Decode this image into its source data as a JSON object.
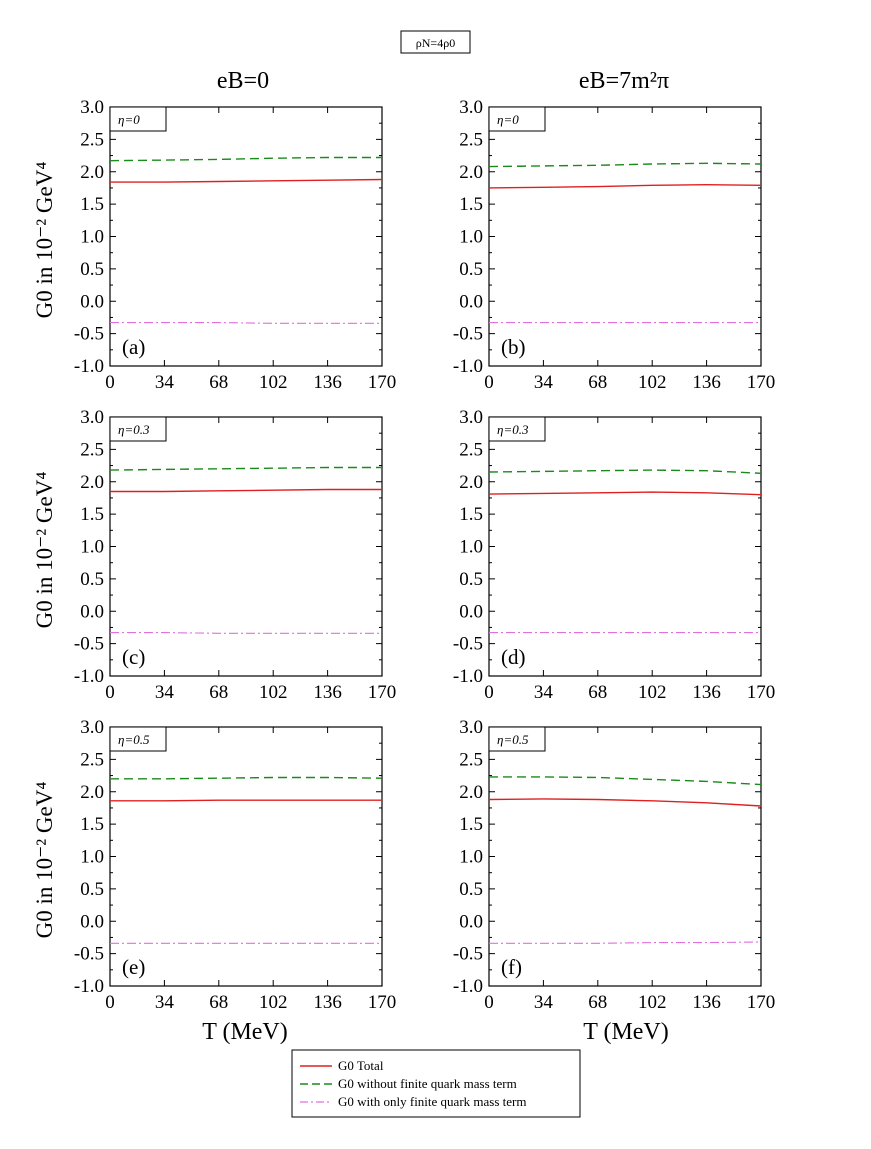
{
  "figure": {
    "density_box": "ρN=4ρ0",
    "columns": [
      "eB=0",
      "eB=7m²π"
    ],
    "ylabel": "G0  in 10⁻² GeV⁴",
    "xlabel": "T (MeV)",
    "legend": [
      "G0 Total",
      "G0 without finite quark mass term",
      "G0 with only finite quark mass term"
    ]
  },
  "colors": {
    "total": "#e02020",
    "without_mass": "#1a8a1a",
    "only_mass": "#e070e0"
  },
  "chart_data": [
    {
      "type": "line",
      "panel": "(a)",
      "tag": "η=0",
      "column": "eB=0",
      "x": [
        0,
        34,
        68,
        102,
        136,
        170
      ],
      "xlim": [
        0,
        170
      ],
      "ylim": [
        -1.0,
        3.0
      ],
      "xticks": [
        "0",
        "34",
        "68",
        "102",
        "136",
        "170"
      ],
      "yticks": [
        "-1.0",
        "-0.5",
        "0.0",
        "0.5",
        "1.0",
        "1.5",
        "2.0",
        "2.5",
        "3.0"
      ],
      "series": [
        {
          "key": "without_mass",
          "style": "dashed",
          "values": [
            2.17,
            2.18,
            2.19,
            2.21,
            2.22,
            2.22
          ]
        },
        {
          "key": "total",
          "style": "solid",
          "values": [
            1.84,
            1.84,
            1.85,
            1.86,
            1.87,
            1.88
          ]
        },
        {
          "key": "only_mass",
          "style": "dashdot",
          "values": [
            -0.33,
            -0.33,
            -0.33,
            -0.34,
            -0.34,
            -0.34
          ]
        }
      ]
    },
    {
      "type": "line",
      "panel": "(b)",
      "tag": "η=0",
      "column": "eB=7m²π",
      "x": [
        0,
        34,
        68,
        102,
        136,
        170
      ],
      "xlim": [
        0,
        170
      ],
      "ylim": [
        -1.0,
        3.0
      ],
      "xticks": [
        "0",
        "34",
        "68",
        "102",
        "136",
        "170"
      ],
      "yticks": [
        "-1.0",
        "-0.5",
        "0.0",
        "0.5",
        "1.0",
        "1.5",
        "2.0",
        "2.5",
        "3.0"
      ],
      "series": [
        {
          "key": "without_mass",
          "style": "dashed",
          "values": [
            2.08,
            2.09,
            2.1,
            2.12,
            2.13,
            2.12
          ]
        },
        {
          "key": "total",
          "style": "solid",
          "values": [
            1.75,
            1.76,
            1.77,
            1.79,
            1.8,
            1.79
          ]
        },
        {
          "key": "only_mass",
          "style": "dashdot",
          "values": [
            -0.33,
            -0.33,
            -0.33,
            -0.33,
            -0.33,
            -0.33
          ]
        }
      ]
    },
    {
      "type": "line",
      "panel": "(c)",
      "tag": "η=0.3",
      "column": "eB=0",
      "x": [
        0,
        34,
        68,
        102,
        136,
        170
      ],
      "xlim": [
        0,
        170
      ],
      "ylim": [
        -1.0,
        3.0
      ],
      "xticks": [
        "0",
        "34",
        "68",
        "102",
        "136",
        "170"
      ],
      "yticks": [
        "-1.0",
        "-0.5",
        "0.0",
        "0.5",
        "1.0",
        "1.5",
        "2.0",
        "2.5",
        "3.0"
      ],
      "series": [
        {
          "key": "without_mass",
          "style": "dashed",
          "values": [
            2.18,
            2.19,
            2.2,
            2.21,
            2.22,
            2.22
          ]
        },
        {
          "key": "total",
          "style": "solid",
          "values": [
            1.85,
            1.85,
            1.86,
            1.87,
            1.88,
            1.88
          ]
        },
        {
          "key": "only_mass",
          "style": "dashdot",
          "values": [
            -0.33,
            -0.33,
            -0.34,
            -0.34,
            -0.34,
            -0.34
          ]
        }
      ]
    },
    {
      "type": "line",
      "panel": "(d)",
      "tag": "η=0.3",
      "column": "eB=7m²π",
      "x": [
        0,
        34,
        68,
        102,
        136,
        170
      ],
      "xlim": [
        0,
        170
      ],
      "ylim": [
        -1.0,
        3.0
      ],
      "xticks": [
        "0",
        "34",
        "68",
        "102",
        "136",
        "170"
      ],
      "yticks": [
        "-1.0",
        "-0.5",
        "0.0",
        "0.5",
        "1.0",
        "1.5",
        "2.0",
        "2.5",
        "3.0"
      ],
      "series": [
        {
          "key": "without_mass",
          "style": "dashed",
          "values": [
            2.15,
            2.16,
            2.17,
            2.18,
            2.17,
            2.13
          ]
        },
        {
          "key": "total",
          "style": "solid",
          "values": [
            1.81,
            1.82,
            1.83,
            1.84,
            1.83,
            1.8
          ]
        },
        {
          "key": "only_mass",
          "style": "dashdot",
          "values": [
            -0.33,
            -0.33,
            -0.33,
            -0.33,
            -0.33,
            -0.33
          ]
        }
      ]
    },
    {
      "type": "line",
      "panel": "(e)",
      "tag": "η=0.5",
      "column": "eB=0",
      "x": [
        0,
        34,
        68,
        102,
        136,
        170
      ],
      "xlim": [
        0,
        170
      ],
      "ylim": [
        -1.0,
        3.0
      ],
      "xticks": [
        "0",
        "34",
        "68",
        "102",
        "136",
        "170"
      ],
      "yticks": [
        "-1.0",
        "-0.5",
        "0.0",
        "0.5",
        "1.0",
        "1.5",
        "2.0",
        "2.5",
        "3.0"
      ],
      "series": [
        {
          "key": "without_mass",
          "style": "dashed",
          "values": [
            2.2,
            2.2,
            2.21,
            2.22,
            2.22,
            2.21
          ]
        },
        {
          "key": "total",
          "style": "solid",
          "values": [
            1.86,
            1.86,
            1.87,
            1.87,
            1.87,
            1.87
          ]
        },
        {
          "key": "only_mass",
          "style": "dashdot",
          "values": [
            -0.34,
            -0.34,
            -0.34,
            -0.34,
            -0.34,
            -0.34
          ]
        }
      ]
    },
    {
      "type": "line",
      "panel": "(f)",
      "tag": "η=0.5",
      "column": "eB=7m²π",
      "x": [
        0,
        34,
        68,
        102,
        136,
        170
      ],
      "xlim": [
        0,
        170
      ],
      "ylim": [
        -1.0,
        3.0
      ],
      "xticks": [
        "0",
        "34",
        "68",
        "102",
        "136",
        "170"
      ],
      "yticks": [
        "-1.0",
        "-0.5",
        "0.0",
        "0.5",
        "1.0",
        "1.5",
        "2.0",
        "2.5",
        "3.0"
      ],
      "series": [
        {
          "key": "without_mass",
          "style": "dashed",
          "values": [
            2.23,
            2.23,
            2.22,
            2.19,
            2.16,
            2.11
          ]
        },
        {
          "key": "total",
          "style": "solid",
          "values": [
            1.88,
            1.89,
            1.88,
            1.86,
            1.83,
            1.78
          ]
        },
        {
          "key": "only_mass",
          "style": "dashdot",
          "values": [
            -0.34,
            -0.34,
            -0.34,
            -0.33,
            -0.33,
            -0.32
          ]
        }
      ]
    }
  ]
}
